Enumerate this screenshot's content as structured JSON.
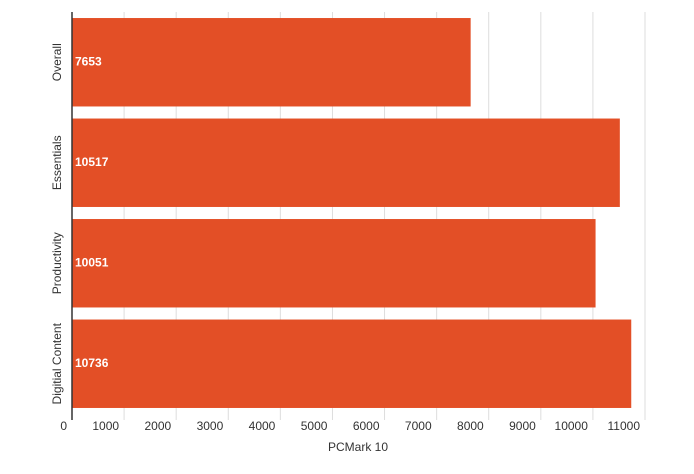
{
  "chart_data": {
    "type": "bar",
    "orientation": "horizontal",
    "categories": [
      "Overall",
      "Essentials",
      "Productivity",
      "Digitial Content"
    ],
    "values": [
      7653,
      10517,
      10051,
      10736
    ],
    "color": "#e34f26",
    "x_label": "PCMark 10",
    "xlim": [
      0,
      11000
    ],
    "xticks": [
      0,
      1000,
      2000,
      3000,
      4000,
      5000,
      6000,
      7000,
      8000,
      9000,
      10000,
      11000
    ],
    "grid": true
  }
}
